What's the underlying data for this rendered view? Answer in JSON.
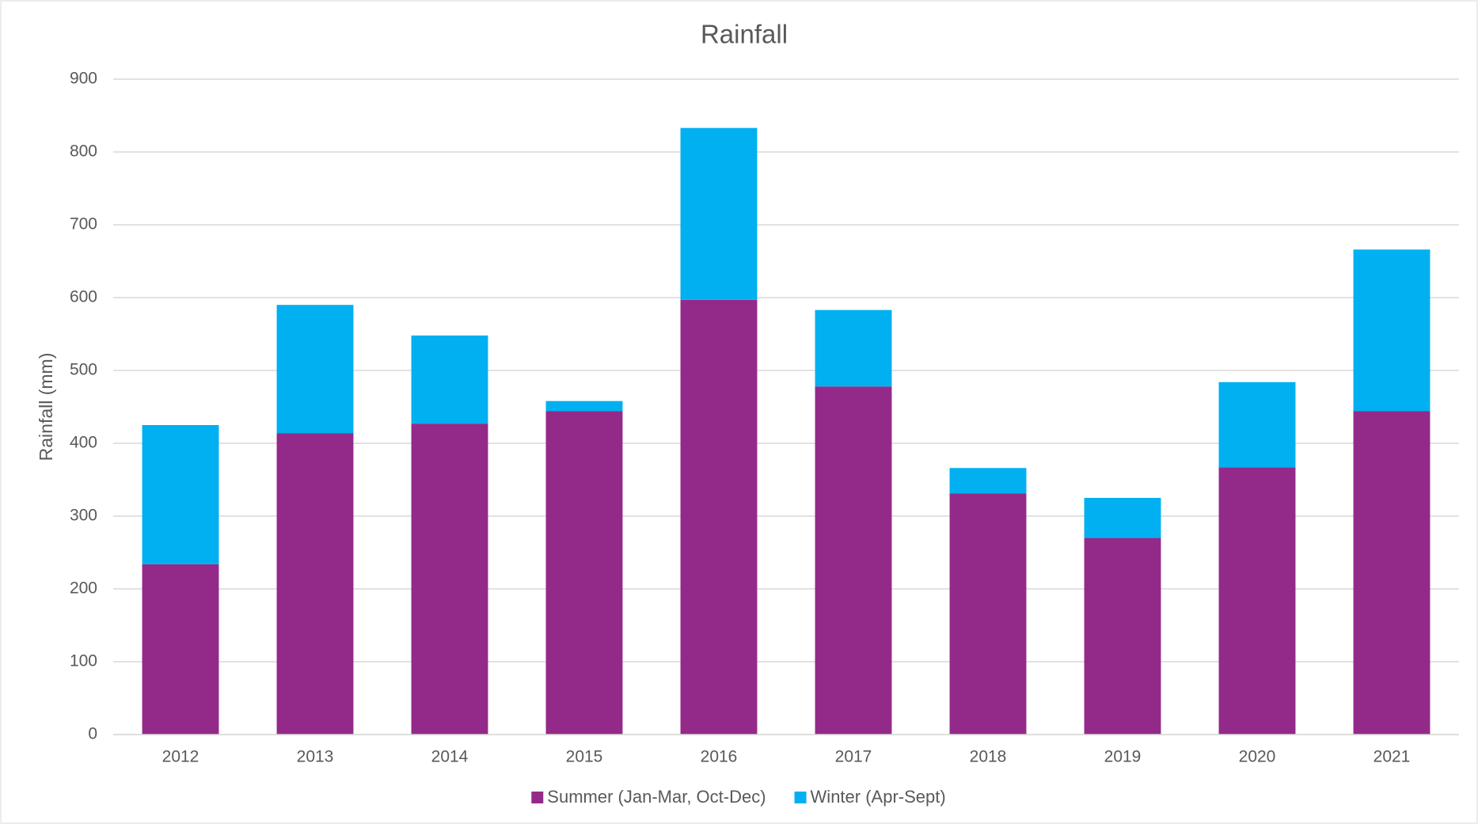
{
  "chart_data": {
    "type": "stacked_bar",
    "title": "Rainfall",
    "y_label": "Rainfall (mm)",
    "categories": [
      "2012",
      "2013",
      "2014",
      "2015",
      "2016",
      "2017",
      "2018",
      "2019",
      "2020",
      "2021"
    ],
    "series": [
      {
        "name": "Summer (Jan-Mar, Oct-Dec)",
        "color": "#932a89",
        "values": [
          234,
          414,
          427,
          444,
          597,
          478,
          331,
          270,
          367,
          444
        ]
      },
      {
        "name": "Winter (Apr-Sept)",
        "color": "#00b0f0",
        "values": [
          191,
          176,
          121,
          14,
          236,
          105,
          35,
          55,
          117,
          222
        ]
      }
    ],
    "ylim": [
      0,
      900
    ],
    "yticks": [
      0,
      100,
      200,
      300,
      400,
      500,
      600,
      700,
      800,
      900
    ],
    "grid": true,
    "legend": "bottom"
  }
}
